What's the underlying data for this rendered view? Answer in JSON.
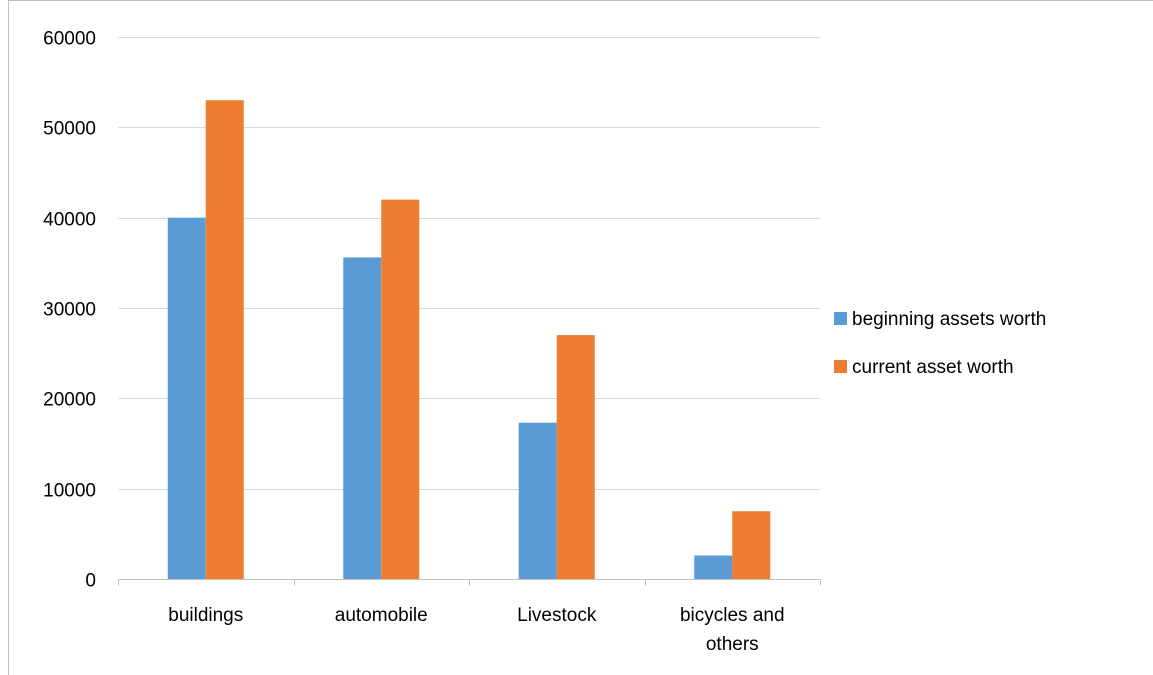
{
  "chart_data": {
    "type": "bar",
    "title": "",
    "xlabel": "",
    "ylabel": "",
    "categories": [
      [
        "buildings"
      ],
      [
        "automobile"
      ],
      [
        "Livestock"
      ],
      [
        "bicycles and",
        "others"
      ]
    ],
    "series": [
      {
        "name": "beginning assets worth",
        "color": "#5b9bd5",
        "values": [
          40000,
          35600,
          17300,
          2600
        ]
      },
      {
        "name": "current asset worth",
        "color": "#ed7d31",
        "values": [
          53000,
          42000,
          27000,
          7500
        ]
      }
    ],
    "ylim": [
      0,
      60000
    ],
    "yticks": [
      "0",
      "10000",
      "20000",
      "30000",
      "40000",
      "50000",
      "60000"
    ],
    "grid": true,
    "legend_position": "right"
  }
}
